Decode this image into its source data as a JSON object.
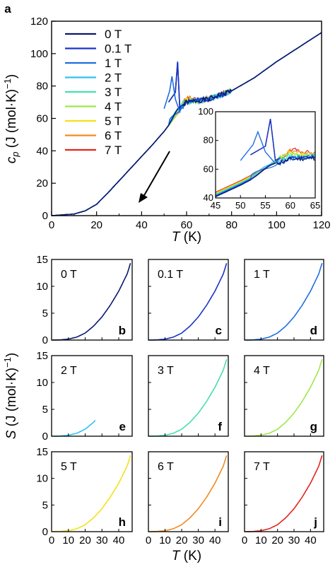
{
  "field_labels": [
    "0 T",
    "0.1 T",
    "1 T",
    "2 T",
    "3 T",
    "4 T",
    "5 T",
    "6 T",
    "7 T"
  ],
  "colors": [
    "#0b1a6e",
    "#1a34c8",
    "#1f6fe0",
    "#2ec3ee",
    "#45e0b0",
    "#9ee84a",
    "#f2e21a",
    "#f08a24",
    "#e3241c"
  ],
  "panel_letters": {
    "a": "a",
    "b": "b",
    "c": "c",
    "d": "d",
    "e": "e",
    "f": "f",
    "g": "g",
    "h": "h",
    "i": "i",
    "j": "j"
  },
  "chart_data": [
    {
      "type": "line",
      "panel": "a",
      "xlabel": {
        "italic": "T",
        "rest": " (K)"
      },
      "ylabel": {
        "italic": "c",
        "sub": "p",
        "rest": " (J (mol·K)",
        "sup": "−1",
        "close": ")"
      },
      "xlim": [
        0,
        120
      ],
      "ylim": [
        0,
        120
      ],
      "xticks": [
        "0",
        "20",
        "40",
        "60",
        "80",
        "100",
        "120"
      ],
      "yticks": [
        "0",
        "20",
        "40",
        "60",
        "80",
        "100",
        "120"
      ],
      "legend_placement": "top-left",
      "annotation": "arrow pointing down-left toward low T",
      "series": [
        {
          "name": "0 T",
          "peak": [
            56,
            95
          ]
        },
        {
          "name": "0.1 T",
          "peak": [
            56,
            95
          ]
        },
        {
          "name": "1 T",
          "peak": [
            53,
            86
          ]
        },
        {
          "name": "2 T",
          "peak": [
            55,
            76
          ]
        },
        {
          "name": "3 T",
          "peak": [
            57,
            74
          ]
        },
        {
          "name": "4 T",
          "peak": [
            58,
            73
          ]
        },
        {
          "name": "5 T",
          "peak": [
            59,
            73
          ]
        },
        {
          "name": "6 T",
          "peak": [
            60,
            72
          ]
        },
        {
          "name": "7 T",
          "peak": [
            61,
            72
          ]
        }
      ],
      "shared_curve": {
        "x": [
          0,
          10,
          15,
          20,
          25,
          30,
          35,
          40,
          45,
          50,
          60,
          70,
          80,
          90,
          100,
          110,
          120
        ],
        "y": [
          0,
          1,
          3,
          7,
          14,
          21.5,
          29,
          36.5,
          44,
          52,
          70,
          72,
          77,
          85,
          95,
          104,
          113
        ]
      },
      "inset": {
        "xlim": [
          45,
          65
        ],
        "ylim": [
          40,
          100
        ],
        "xticks": [
          "45",
          "50",
          "55",
          "60",
          "65"
        ],
        "yticks": [
          "40",
          "60",
          "80",
          "100"
        ]
      }
    },
    {
      "type": "line",
      "panels": [
        "b",
        "c",
        "d",
        "e",
        "f",
        "g",
        "h",
        "i",
        "j"
      ],
      "ylabel": {
        "italic": "S",
        "rest": " (J (mol·K)",
        "sup": "−1",
        "close": ")"
      },
      "xlabel": {
        "italic": "T",
        "rest": " (K)"
      },
      "xlim": [
        0,
        48
      ],
      "ylim": [
        0,
        15
      ],
      "xticks": [
        "0",
        "10",
        "20",
        "30",
        "40"
      ],
      "yticks": [
        "0",
        "5",
        "10",
        "15"
      ],
      "curve": {
        "x": [
          0,
          5,
          10,
          15,
          20,
          25,
          30,
          35,
          40,
          45,
          47
        ],
        "y": [
          0,
          0.03,
          0.18,
          0.55,
          1.3,
          2.6,
          4.3,
          6.5,
          9.1,
          12.3,
          14.3
        ]
      },
      "panel_ranges": [
        {
          "field": "0 T",
          "xmax": 47
        },
        {
          "field": "0.1 T",
          "xmax": 47
        },
        {
          "field": "1 T",
          "xmax": 47
        },
        {
          "field": "2 T",
          "xmax": 26
        },
        {
          "field": "3 T",
          "xmax": 47
        },
        {
          "field": "4 T",
          "xmax": 47
        },
        {
          "field": "5 T",
          "xmax": 47
        },
        {
          "field": "6 T",
          "xmax": 47
        },
        {
          "field": "7 T",
          "xmax": 47
        }
      ]
    }
  ]
}
